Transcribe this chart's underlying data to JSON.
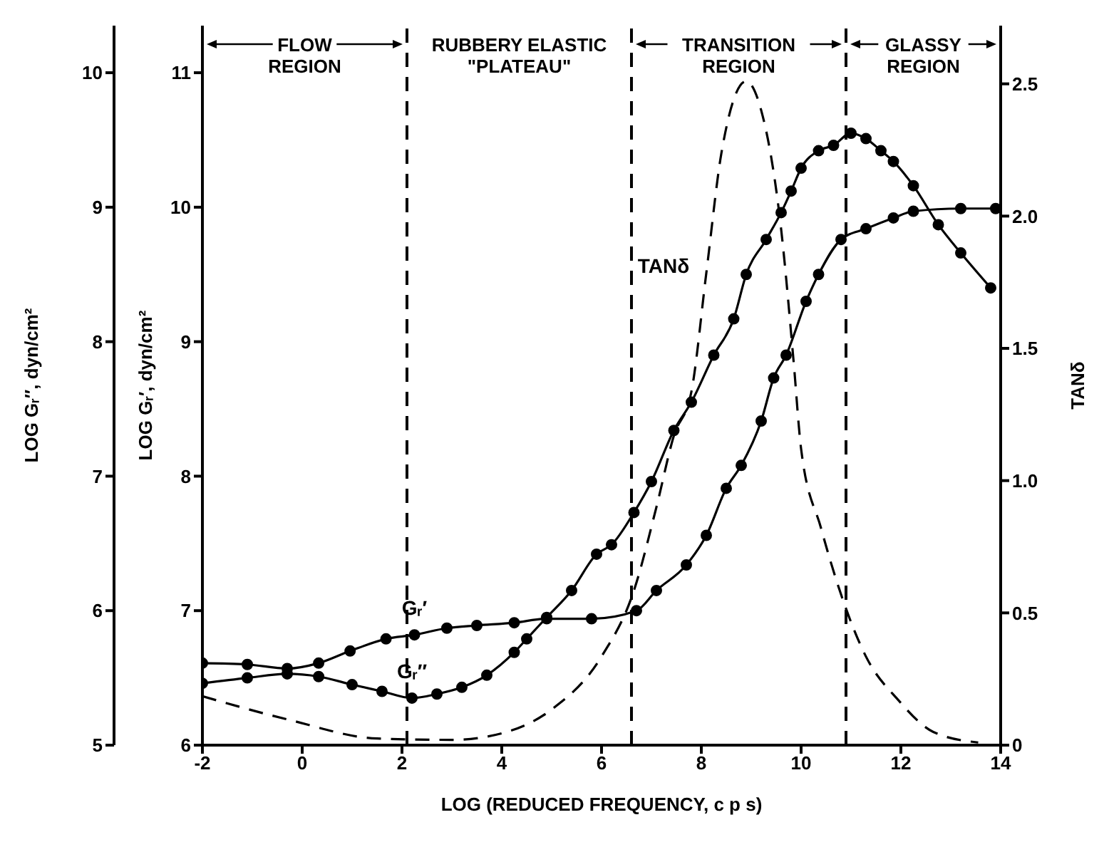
{
  "chart_data": {
    "type": "line",
    "xlabel": "LOG (REDUCED FREQUENCY, c p s)",
    "ylabel": "LOG Gᵣ′, dyn/cm²",
    "y2label": "LOG Gᵣ″, dyn/cm²",
    "y3label": "TANδ",
    "xlim": [
      -2,
      14
    ],
    "xticks": [
      -2,
      0,
      2,
      4,
      6,
      8,
      10,
      12,
      14
    ],
    "ylim": [
      6,
      11.35
    ],
    "yticks": [
      6,
      7,
      8,
      9,
      10,
      11
    ],
    "y2lim": [
      5,
      10.35
    ],
    "y2ticks": [
      5,
      6,
      7,
      8,
      9,
      10
    ],
    "y3lim": [
      0,
      2.72
    ],
    "y3ticks": [
      0,
      0.5,
      {
        "value": 1,
        "label": "1.0"
      },
      1.5,
      {
        "value": 2,
        "label": "2.0"
      },
      2.5
    ],
    "series": [
      {
        "name": "Gᵣ′",
        "color": "#000000",
        "axis": "y",
        "marker": "circle",
        "line_style": "solid",
        "x": [
          -2,
          -1.1,
          -0.3,
          0.33,
          0.96,
          1.68,
          2.25,
          2.9,
          3.5,
          4.25,
          4.9,
          5.8,
          6.7,
          7.1,
          7.7,
          8.1,
          8.5,
          8.8,
          9.2,
          9.45,
          9.7,
          10.1,
          10.35,
          10.8,
          11.3,
          11.85,
          12.25,
          13.2,
          13.9
        ],
        "values": [
          6.61,
          6.6,
          6.57,
          6.61,
          6.7,
          6.79,
          6.82,
          6.87,
          6.89,
          6.91,
          6.94,
          6.94,
          7.0,
          7.15,
          7.34,
          7.56,
          7.91,
          8.08,
          8.41,
          8.73,
          8.9,
          9.3,
          9.5,
          9.76,
          9.84,
          9.92,
          9.97,
          9.99,
          9.99
        ]
      },
      {
        "name": "Gᵣ″",
        "color": "#000000",
        "axis": "y2",
        "marker": "circle",
        "line_style": "solid",
        "x": [
          -2,
          -1.1,
          -0.3,
          0.33,
          1.0,
          1.6,
          2.2,
          2.7,
          3.2,
          3.7,
          4.25,
          4.5,
          4.9,
          5.4,
          5.9,
          6.2,
          6.65,
          7.0,
          7.45,
          7.8,
          8.25,
          8.65,
          8.9,
          9.3,
          9.6,
          9.8,
          10.0,
          10.35,
          10.65,
          11.0,
          11.3,
          11.6,
          11.85,
          12.25,
          12.75,
          13.2,
          13.8
        ],
        "values": [
          5.46,
          5.5,
          5.53,
          5.51,
          5.45,
          5.4,
          5.35,
          5.38,
          5.43,
          5.52,
          5.69,
          5.79,
          5.95,
          6.15,
          6.42,
          6.49,
          6.73,
          6.96,
          7.34,
          7.55,
          7.9,
          8.17,
          8.5,
          8.76,
          8.96,
          9.12,
          9.29,
          9.42,
          9.46,
          9.55,
          9.51,
          9.42,
          9.34,
          9.16,
          8.87,
          8.66,
          8.4
        ]
      },
      {
        "name": "TANδ",
        "color": "#000000",
        "axis": "y3",
        "marker": "none",
        "line_style": "dashed",
        "x": [
          -2,
          -0.25,
          1.5,
          3.0,
          4.1,
          5.0,
          6.0,
          6.65,
          7.1,
          7.45,
          7.8,
          8.1,
          8.4,
          8.9,
          9.2,
          9.6,
          9.85,
          10.0,
          10.4,
          10.8,
          11.3,
          11.95,
          12.65,
          13.55
        ],
        "values": [
          0.185,
          0.095,
          0.025,
          0.02,
          0.05,
          0.135,
          0.335,
          0.585,
          0.9,
          1.17,
          1.335,
          1.785,
          2.235,
          2.51,
          2.4,
          1.95,
          1.45,
          1.12,
          0.82,
          0.57,
          0.335,
          0.17,
          0.05,
          0.01
        ]
      }
    ],
    "ref_lines": [
      {
        "axis": "x",
        "value": 2.1,
        "color": "#000000",
        "line_style": "dashed"
      },
      {
        "axis": "x",
        "value": 6.6,
        "color": "#000000",
        "line_style": "dashed"
      },
      {
        "axis": "x",
        "value": 10.9,
        "color": "#000000",
        "line_style": "dashed"
      }
    ],
    "annotations": [
      "FLOW REGION",
      "RUBBERY ELASTIC \"PLATEAU\"",
      "TRANSITION REGION",
      "GLASSY REGION"
    ],
    "grid": false
  }
}
